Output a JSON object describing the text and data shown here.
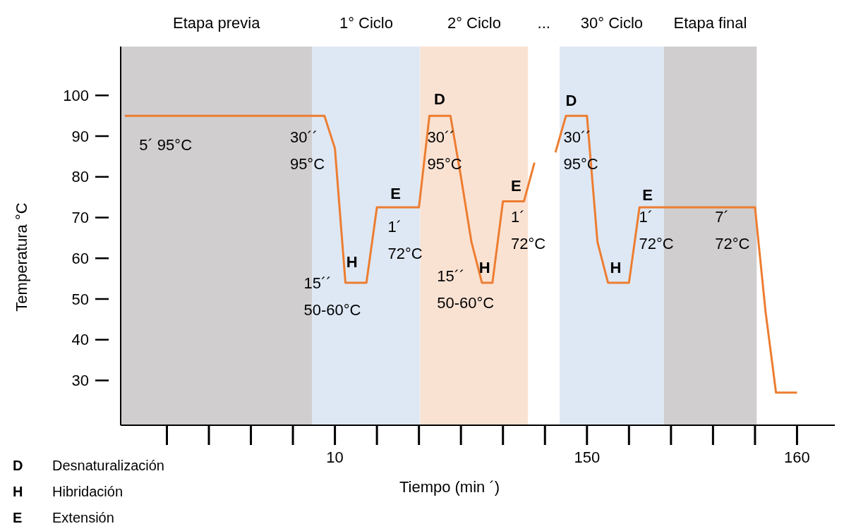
{
  "chart_data": {
    "type": "line",
    "xlabel": "Tiempo (min ´)",
    "ylabel": "Temperatura °C",
    "categories": [
      null,
      null,
      null,
      null,
      null,
      null,
      null,
      null,
      null,
      null,
      null,
      null,
      null,
      null,
      null,
      null,
      null,
      null,
      null,
      null,
      "10",
      null,
      null,
      null,
      null,
      null,
      null,
      null,
      null,
      null,
      null,
      null,
      null,
      null,
      null,
      null,
      null,
      null,
      null,
      null,
      null,
      null,
      null,
      null,
      "150",
      null,
      null,
      null,
      null,
      null,
      null,
      null,
      null,
      null,
      null,
      null,
      null,
      null,
      null,
      null,
      null,
      null,
      null,
      null,
      "160"
    ],
    "ylim": [
      19,
      112
    ],
    "yticks": [
      30,
      40,
      50,
      60,
      70,
      80,
      90,
      100
    ],
    "grid": false,
    "marker": "none",
    "line_style": "solid",
    "series": [
      {
        "color": "#ed7d31",
        "values": [
          95,
          95,
          95,
          95,
          95,
          95,
          95,
          95,
          95,
          95,
          95,
          95,
          95,
          95,
          95,
          95,
          95,
          95,
          95,
          95,
          87,
          54,
          54,
          54,
          72.5,
          72.5,
          72.5,
          72.5,
          72.5,
          95,
          95,
          95,
          80,
          64,
          54,
          54,
          74,
          74,
          74,
          83.5,
          null,
          86,
          95,
          95,
          95,
          64,
          54,
          54,
          54,
          72.5,
          72.5,
          72.5,
          72.5,
          72.5,
          72.5,
          72.5,
          72.5,
          72.5,
          72.5,
          72.5,
          72.5,
          47,
          27,
          27,
          27
        ]
      }
    ],
    "annotations": [
      "5´ 95°C",
      "30´´\n95°C",
      "15´´\n50-60°C",
      "1´\n72°C",
      "30´´\n95°C",
      "15´´\n50-60°C",
      "1´\n72°C",
      "30´´\n95°C",
      "1´\n72°C",
      "7´\n72°C",
      "D",
      "H",
      "E",
      "H",
      "E",
      "D",
      "H",
      "E",
      "Etapa previa",
      "1° Ciclo",
      "2° Ciclo",
      "...",
      "30° Ciclo",
      "Etapa final",
      "D Desnaturalización",
      "H Hibridación",
      "E Extensión"
    ]
  }
}
